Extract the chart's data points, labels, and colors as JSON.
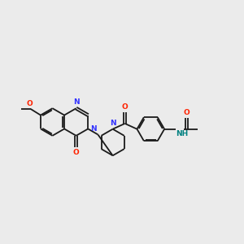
{
  "bg_color": "#ebebeb",
  "bond_color": "#1a1a1a",
  "n_color": "#3333ff",
  "o_color": "#ff2200",
  "nh_color": "#008080",
  "font_size": 6.5,
  "line_width": 1.3,
  "figsize": [
    3.0,
    3.0
  ],
  "dpi": 100,
  "xlim": [
    -0.5,
    10.5
  ],
  "ylim": [
    2.5,
    7.5
  ]
}
